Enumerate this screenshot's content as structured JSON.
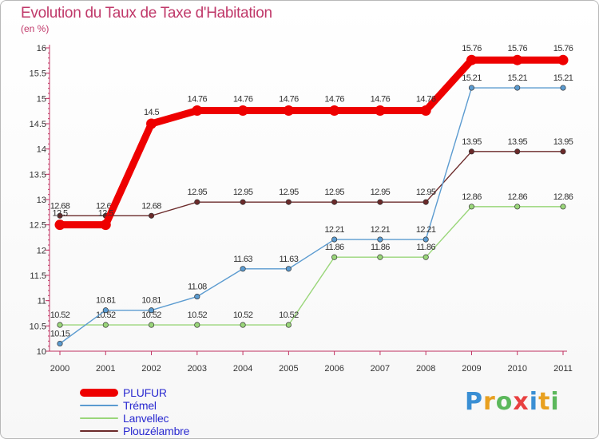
{
  "header": {
    "title": "Evolution du Taux de Taxe d'Habitation",
    "unit": "(en %)"
  },
  "brand": {
    "letters": [
      "P",
      "r",
      "o",
      "x",
      "i",
      "t",
      "i"
    ],
    "colors": [
      "#3a8fd4",
      "#e8a020",
      "#5cb85c",
      "#e84040",
      "#3a8fd4",
      "#e8a020",
      "#5cb85c"
    ]
  },
  "chart_data": {
    "type": "line",
    "title": "Evolution du Taux de Taxe d'Habitation",
    "ylabel": "(en %)",
    "xlabel": "",
    "categories": [
      "2000",
      "2001",
      "2002",
      "2003",
      "2004",
      "2005",
      "2006",
      "2007",
      "2008",
      "2009",
      "2010",
      "2011"
    ],
    "ylim": [
      10,
      16
    ],
    "yticks": [
      "10",
      "10.5",
      "11",
      "11.5",
      "12",
      "12.5",
      "13",
      "13.5",
      "14",
      "14.5",
      "15",
      "15.5",
      "16"
    ],
    "grid": false,
    "legend_position": "bottom-left",
    "series": [
      {
        "name": "Plouzélambre",
        "color": "#6b2a2a",
        "values": [
          12.68,
          12.68,
          12.68,
          12.95,
          12.95,
          12.95,
          12.95,
          12.95,
          12.95,
          13.95,
          13.95,
          13.95
        ],
        "labels": [
          "12.68",
          "12.68",
          "12.68",
          "12.95",
          "12.95",
          "12.95",
          "12.95",
          "12.95",
          "12.95",
          "13.95",
          "13.95",
          "13.95"
        ]
      },
      {
        "name": "Lanvellec",
        "color": "#9ad67a",
        "values": [
          10.52,
          10.52,
          10.52,
          10.52,
          10.52,
          10.52,
          11.86,
          11.86,
          11.86,
          12.86,
          12.86,
          12.86
        ],
        "labels": [
          "10.52",
          "10.52",
          "10.52",
          "10.52",
          "10.52",
          "10.52",
          "11.86",
          "11.86",
          "11.86",
          "12.86",
          "12.86",
          "12.86"
        ]
      },
      {
        "name": "Trémel",
        "color": "#5b9bd0",
        "values": [
          10.15,
          10.81,
          10.81,
          11.08,
          11.63,
          11.63,
          12.21,
          12.21,
          12.21,
          15.21,
          15.21,
          15.21
        ],
        "labels": [
          "10.15",
          "10.81",
          "10.81",
          "11.08",
          "11.63",
          "11.63",
          "12.21",
          "12.21",
          "12.21",
          "15.21",
          "15.21",
          "15.21"
        ]
      },
      {
        "name": "PLUFUR",
        "color": "#ee0000",
        "values": [
          12.5,
          12.5,
          14.5,
          14.76,
          14.76,
          14.76,
          14.76,
          14.76,
          14.76,
          15.76,
          15.76,
          15.76
        ],
        "labels": [
          "12.5",
          "12.5",
          "14.5",
          "14.76",
          "14.76",
          "14.76",
          "14.76",
          "14.76",
          "14.76",
          "15.76",
          "15.76",
          "15.76"
        ]
      }
    ],
    "legend": [
      {
        "name": "PLUFUR",
        "color": "#ee0000",
        "text_color": "#2a2ad0"
      },
      {
        "name": "Trémel",
        "color": "#5b9bd0",
        "text_color": "#2a2ad0"
      },
      {
        "name": "Lanvellec",
        "color": "#9ad67a",
        "text_color": "#2a2ad0"
      },
      {
        "name": "Plouzélambre",
        "color": "#6b2a2a",
        "text_color": "#2a2ad0"
      }
    ]
  }
}
